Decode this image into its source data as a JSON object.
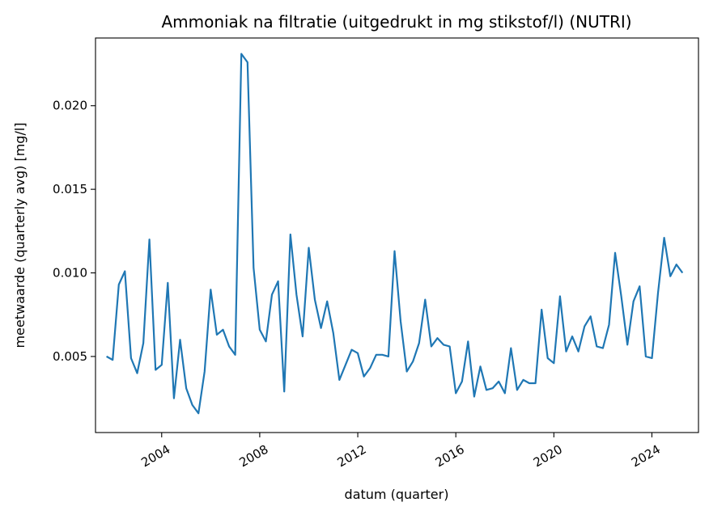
{
  "chart_data": {
    "type": "line",
    "title": "Ammoniak na filtratie (uitgedrukt in mg stikstof/l) (NUTRI)",
    "xlabel": "datum (quarter)",
    "ylabel": "meetwaarde (quarterly avg) [mg/l]",
    "x_ticks": [
      "2004",
      "2008",
      "2012",
      "2016",
      "2020",
      "2024"
    ],
    "y_ticks": [
      "0.005",
      "0.010",
      "0.015",
      "0.020"
    ],
    "xlim": [
      2001.3,
      2025.9
    ],
    "ylim": [
      0.00045,
      0.02405
    ],
    "grid": false,
    "color": "#1f77b4",
    "series": [
      {
        "x": [
          2001.75,
          2002.0,
          2002.25,
          2002.5,
          2002.75,
          2003.0,
          2003.25,
          2003.5,
          2003.75,
          2004.0,
          2004.25,
          2004.5,
          2004.75,
          2005.0,
          2005.25,
          2005.5,
          2005.75,
          2006.0,
          2006.25,
          2006.5,
          2006.75,
          2007.0,
          2007.25,
          2007.5,
          2007.75,
          2008.0,
          2008.25,
          2008.5,
          2008.75,
          2009.0,
          2009.25,
          2009.5,
          2009.75,
          2010.0,
          2010.25,
          2010.5,
          2010.75,
          2011.0,
          2011.25,
          2011.5,
          2011.75,
          2012.0,
          2012.25,
          2012.5,
          2012.75,
          2013.0,
          2013.25,
          2013.5,
          2013.75,
          2014.0,
          2014.25,
          2014.5,
          2014.75,
          2015.0,
          2015.25,
          2015.5,
          2015.75,
          2016.0,
          2016.25,
          2016.5,
          2016.75,
          2017.0,
          2017.25,
          2017.5,
          2017.75,
          2018.0,
          2018.25,
          2018.5,
          2018.75,
          2019.0,
          2019.25,
          2019.5,
          2019.75,
          2020.0,
          2020.25,
          2020.5,
          2020.75,
          2021.0,
          2021.25,
          2021.5,
          2021.75,
          2022.0,
          2022.25,
          2022.5,
          2022.75,
          2023.0,
          2023.25,
          2023.5,
          2023.75,
          2024.0,
          2024.25,
          2024.5,
          2024.75,
          2025.0,
          2025.25
        ],
        "y": [
          0.005,
          0.0048,
          0.0093,
          0.0101,
          0.0049,
          0.004,
          0.0058,
          0.012,
          0.0042,
          0.0045,
          0.0094,
          0.0025,
          0.006,
          0.0031,
          0.0021,
          0.0016,
          0.0041,
          0.009,
          0.0063,
          0.0066,
          0.0056,
          0.0051,
          0.0231,
          0.0226,
          0.0103,
          0.0066,
          0.0059,
          0.0087,
          0.0095,
          0.0029,
          0.0123,
          0.0087,
          0.0062,
          0.0115,
          0.0084,
          0.0067,
          0.0083,
          0.0064,
          0.0036,
          0.0045,
          0.0054,
          0.0052,
          0.0038,
          0.0043,
          0.0051,
          0.0051,
          0.005,
          0.0113,
          0.0071,
          0.0041,
          0.0047,
          0.0058,
          0.0084,
          0.0056,
          0.0061,
          0.0057,
          0.0056,
          0.0028,
          0.0035,
          0.0059,
          0.0026,
          0.0044,
          0.003,
          0.0031,
          0.0035,
          0.0028,
          0.0055,
          0.003,
          0.0036,
          0.0034,
          0.0034,
          0.0078,
          0.0049,
          0.0046,
          0.0086,
          0.0053,
          0.0062,
          0.0053,
          0.0068,
          0.0074,
          0.0056,
          0.0055,
          0.0069,
          0.0112,
          0.0086,
          0.0057,
          0.0083,
          0.0092,
          0.005,
          0.0049,
          0.0088,
          0.0121,
          0.0098,
          0.0105,
          0.01
        ]
      }
    ]
  }
}
